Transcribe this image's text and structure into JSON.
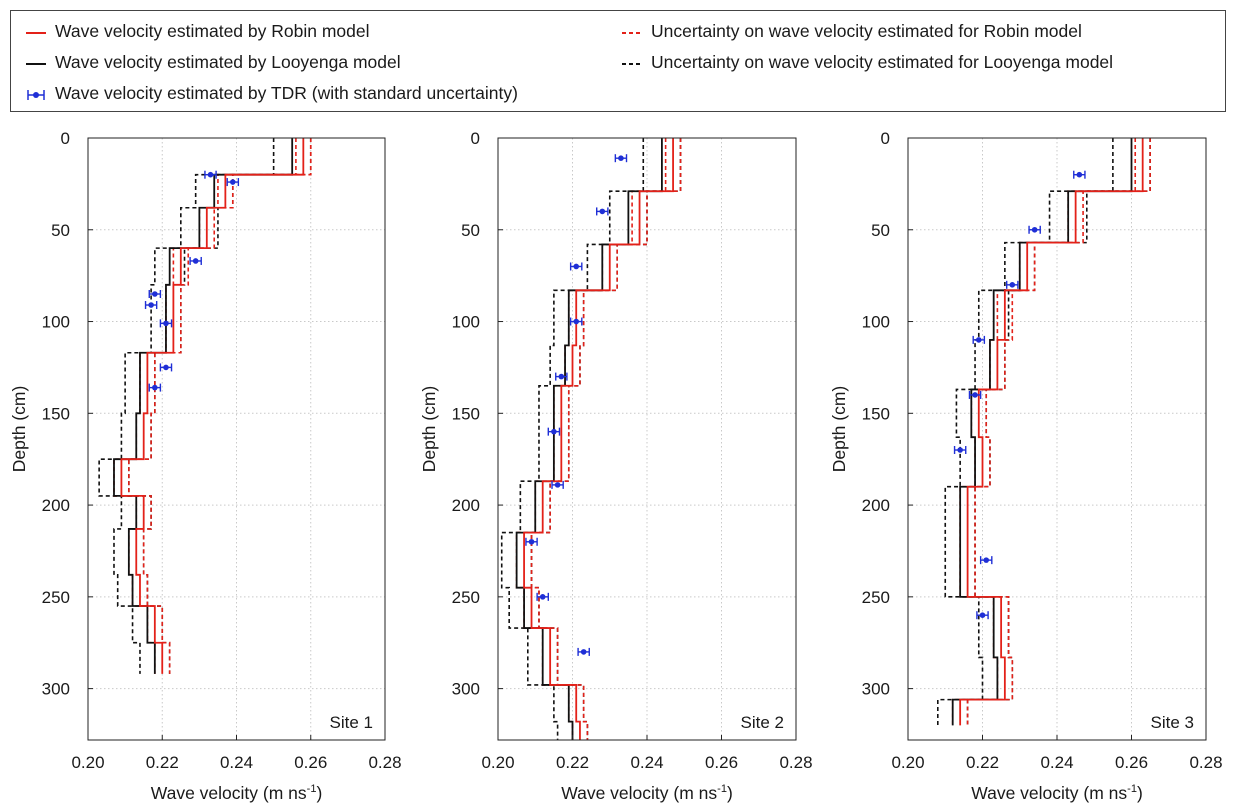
{
  "legend": {
    "items": [
      {
        "label": "Wave velocity estimated by Robin model",
        "color": "#e32119",
        "style": "solid"
      },
      {
        "label": "Wave velocity estimated by Looyenga model",
        "color": "#111111",
        "style": "solid"
      },
      {
        "label": "Wave velocity estimated by TDR (with standard uncertainty)",
        "color": "#1f2fd6",
        "style": "errorbar"
      },
      {
        "label": "Uncertainty on wave velocity estimated for Robin model",
        "color": "#e32119",
        "style": "dashed"
      },
      {
        "label": "Uncertainty on wave velocity estimated for Looyenga model",
        "color": "#111111",
        "style": "dashed"
      }
    ]
  },
  "chart_data": [
    {
      "type": "line",
      "site_label": "Site 1",
      "xlabel": "Wave velocity (m ns",
      "xlabel_sup": "-1",
      "xlabel_close": ")",
      "ylabel": "Depth (cm)",
      "xlim": [
        0.2,
        0.28
      ],
      "ylim": [
        0,
        328
      ],
      "y_inverted": true,
      "xticks": [
        "0.20",
        "0.22",
        "0.24",
        "0.26",
        "0.28"
      ],
      "yticks": [
        "0",
        "50",
        "100",
        "150",
        "200",
        "250",
        "300"
      ],
      "grid": true,
      "layers": [
        {
          "top": 0,
          "bottom": 20,
          "robin": 0.258,
          "looyenga": 0.255,
          "robin_unc": 0.002,
          "looyenga_unc": 0.005
        },
        {
          "top": 20,
          "bottom": 38,
          "robin": 0.237,
          "looyenga": 0.234,
          "robin_unc": 0.002,
          "looyenga_unc": 0.005
        },
        {
          "top": 38,
          "bottom": 60,
          "robin": 0.232,
          "looyenga": 0.23,
          "robin_unc": 0.002,
          "looyenga_unc": 0.005
        },
        {
          "top": 60,
          "bottom": 80,
          "robin": 0.225,
          "looyenga": 0.222,
          "robin_unc": 0.002,
          "looyenga_unc": 0.004
        },
        {
          "top": 80,
          "bottom": 117,
          "robin": 0.223,
          "looyenga": 0.221,
          "robin_unc": 0.002,
          "looyenga_unc": 0.004
        },
        {
          "top": 117,
          "bottom": 150,
          "robin": 0.216,
          "looyenga": 0.214,
          "robin_unc": 0.002,
          "looyenga_unc": 0.004
        },
        {
          "top": 150,
          "bottom": 175,
          "robin": 0.215,
          "looyenga": 0.213,
          "robin_unc": 0.002,
          "looyenga_unc": 0.004
        },
        {
          "top": 175,
          "bottom": 195,
          "robin": 0.209,
          "looyenga": 0.207,
          "robin_unc": 0.002,
          "looyenga_unc": 0.004
        },
        {
          "top": 195,
          "bottom": 213,
          "robin": 0.215,
          "looyenga": 0.213,
          "robin_unc": 0.002,
          "looyenga_unc": 0.004
        },
        {
          "top": 213,
          "bottom": 238,
          "robin": 0.213,
          "looyenga": 0.211,
          "robin_unc": 0.002,
          "looyenga_unc": 0.004
        },
        {
          "top": 238,
          "bottom": 255,
          "robin": 0.214,
          "looyenga": 0.212,
          "robin_unc": 0.002,
          "looyenga_unc": 0.004
        },
        {
          "top": 255,
          "bottom": 275,
          "robin": 0.218,
          "looyenga": 0.216,
          "robin_unc": 0.002,
          "looyenga_unc": 0.004
        },
        {
          "top": 275,
          "bottom": 292,
          "robin": 0.22,
          "looyenga": 0.218,
          "robin_unc": 0.002,
          "looyenga_unc": 0.004
        }
      ],
      "tdr": [
        {
          "depth": 20,
          "v": 0.233,
          "err": 0.0015
        },
        {
          "depth": 24,
          "v": 0.239,
          "err": 0.0015
        },
        {
          "depth": 67,
          "v": 0.229,
          "err": 0.0015
        },
        {
          "depth": 85,
          "v": 0.218,
          "err": 0.0015
        },
        {
          "depth": 91,
          "v": 0.217,
          "err": 0.0015
        },
        {
          "depth": 101,
          "v": 0.221,
          "err": 0.0015
        },
        {
          "depth": 125,
          "v": 0.221,
          "err": 0.0015
        },
        {
          "depth": 136,
          "v": 0.218,
          "err": 0.0015
        }
      ]
    },
    {
      "type": "line",
      "site_label": "Site 2",
      "xlabel": "Wave velocity (m ns",
      "xlabel_sup": "-1",
      "xlabel_close": ")",
      "ylabel": "Depth (cm)",
      "xlim": [
        0.2,
        0.28
      ],
      "ylim": [
        0,
        328
      ],
      "y_inverted": true,
      "xticks": [
        "0.20",
        "0.22",
        "0.24",
        "0.26",
        "0.28"
      ],
      "yticks": [
        "0",
        "50",
        "100",
        "150",
        "200",
        "250",
        "300"
      ],
      "grid": true,
      "layers": [
        {
          "top": 0,
          "bottom": 29,
          "robin": 0.247,
          "looyenga": 0.244,
          "robin_unc": 0.002,
          "looyenga_unc": 0.005
        },
        {
          "top": 29,
          "bottom": 58,
          "robin": 0.238,
          "looyenga": 0.235,
          "robin_unc": 0.002,
          "looyenga_unc": 0.005
        },
        {
          "top": 58,
          "bottom": 83,
          "robin": 0.23,
          "looyenga": 0.228,
          "robin_unc": 0.002,
          "looyenga_unc": 0.004
        },
        {
          "top": 83,
          "bottom": 113,
          "robin": 0.221,
          "looyenga": 0.219,
          "robin_unc": 0.002,
          "looyenga_unc": 0.004
        },
        {
          "top": 113,
          "bottom": 135,
          "robin": 0.22,
          "looyenga": 0.218,
          "robin_unc": 0.002,
          "looyenga_unc": 0.004
        },
        {
          "top": 135,
          "bottom": 187,
          "robin": 0.217,
          "looyenga": 0.215,
          "robin_unc": 0.002,
          "looyenga_unc": 0.004
        },
        {
          "top": 187,
          "bottom": 215,
          "robin": 0.212,
          "looyenga": 0.21,
          "robin_unc": 0.002,
          "looyenga_unc": 0.004
        },
        {
          "top": 215,
          "bottom": 245,
          "robin": 0.207,
          "looyenga": 0.205,
          "robin_unc": 0.002,
          "looyenga_unc": 0.004
        },
        {
          "top": 245,
          "bottom": 267,
          "robin": 0.209,
          "looyenga": 0.207,
          "robin_unc": 0.002,
          "looyenga_unc": 0.004
        },
        {
          "top": 267,
          "bottom": 298,
          "robin": 0.214,
          "looyenga": 0.212,
          "robin_unc": 0.002,
          "looyenga_unc": 0.004
        },
        {
          "top": 298,
          "bottom": 318,
          "robin": 0.221,
          "looyenga": 0.219,
          "robin_unc": 0.002,
          "looyenga_unc": 0.004
        },
        {
          "top": 318,
          "bottom": 328,
          "robin": 0.222,
          "looyenga": 0.22,
          "robin_unc": 0.002,
          "looyenga_unc": 0.004
        }
      ],
      "tdr": [
        {
          "depth": 11,
          "v": 0.233,
          "err": 0.0015
        },
        {
          "depth": 40,
          "v": 0.228,
          "err": 0.0015
        },
        {
          "depth": 70,
          "v": 0.221,
          "err": 0.0015
        },
        {
          "depth": 100,
          "v": 0.221,
          "err": 0.0015
        },
        {
          "depth": 130,
          "v": 0.217,
          "err": 0.0015
        },
        {
          "depth": 160,
          "v": 0.215,
          "err": 0.0015
        },
        {
          "depth": 189,
          "v": 0.216,
          "err": 0.0015
        },
        {
          "depth": 220,
          "v": 0.209,
          "err": 0.0015
        },
        {
          "depth": 250,
          "v": 0.212,
          "err": 0.0015
        },
        {
          "depth": 280,
          "v": 0.223,
          "err": 0.0015
        }
      ]
    },
    {
      "type": "line",
      "site_label": "Site 3",
      "xlabel": "Wave velocity (m ns",
      "xlabel_sup": "-1",
      "xlabel_close": ")",
      "ylabel": "Depth (cm)",
      "xlim": [
        0.2,
        0.28
      ],
      "ylim": [
        0,
        328
      ],
      "y_inverted": true,
      "xticks": [
        "0.20",
        "0.22",
        "0.24",
        "0.26",
        "0.28"
      ],
      "yticks": [
        "0",
        "50",
        "100",
        "150",
        "200",
        "250",
        "300"
      ],
      "grid": true,
      "layers": [
        {
          "top": 0,
          "bottom": 29,
          "robin": 0.263,
          "looyenga": 0.26,
          "robin_unc": 0.002,
          "looyenga_unc": 0.005
        },
        {
          "top": 29,
          "bottom": 57,
          "robin": 0.245,
          "looyenga": 0.243,
          "robin_unc": 0.002,
          "looyenga_unc": 0.005
        },
        {
          "top": 57,
          "bottom": 83,
          "robin": 0.232,
          "looyenga": 0.23,
          "robin_unc": 0.002,
          "looyenga_unc": 0.004
        },
        {
          "top": 83,
          "bottom": 110,
          "robin": 0.226,
          "looyenga": 0.223,
          "robin_unc": 0.002,
          "looyenga_unc": 0.004
        },
        {
          "top": 110,
          "bottom": 137,
          "robin": 0.224,
          "looyenga": 0.222,
          "robin_unc": 0.002,
          "looyenga_unc": 0.004
        },
        {
          "top": 137,
          "bottom": 163,
          "robin": 0.219,
          "looyenga": 0.217,
          "robin_unc": 0.002,
          "looyenga_unc": 0.004
        },
        {
          "top": 163,
          "bottom": 190,
          "robin": 0.22,
          "looyenga": 0.218,
          "robin_unc": 0.002,
          "looyenga_unc": 0.004
        },
        {
          "top": 190,
          "bottom": 220,
          "robin": 0.216,
          "looyenga": 0.214,
          "robin_unc": 0.002,
          "looyenga_unc": 0.004
        },
        {
          "top": 220,
          "bottom": 250,
          "robin": 0.216,
          "looyenga": 0.214,
          "robin_unc": 0.002,
          "looyenga_unc": 0.004
        },
        {
          "top": 250,
          "bottom": 283,
          "robin": 0.225,
          "looyenga": 0.223,
          "robin_unc": 0.002,
          "looyenga_unc": 0.004
        },
        {
          "top": 283,
          "bottom": 306,
          "robin": 0.226,
          "looyenga": 0.224,
          "robin_unc": 0.002,
          "looyenga_unc": 0.004
        },
        {
          "top": 306,
          "bottom": 320,
          "robin": 0.214,
          "looyenga": 0.212,
          "robin_unc": 0.002,
          "looyenga_unc": 0.004
        }
      ],
      "tdr": [
        {
          "depth": 20,
          "v": 0.246,
          "err": 0.0015
        },
        {
          "depth": 50,
          "v": 0.234,
          "err": 0.0015
        },
        {
          "depth": 80,
          "v": 0.228,
          "err": 0.0015
        },
        {
          "depth": 110,
          "v": 0.219,
          "err": 0.0015
        },
        {
          "depth": 140,
          "v": 0.218,
          "err": 0.0015
        },
        {
          "depth": 170,
          "v": 0.214,
          "err": 0.0015
        },
        {
          "depth": 230,
          "v": 0.221,
          "err": 0.0015
        },
        {
          "depth": 260,
          "v": 0.22,
          "err": 0.0015
        }
      ]
    }
  ]
}
